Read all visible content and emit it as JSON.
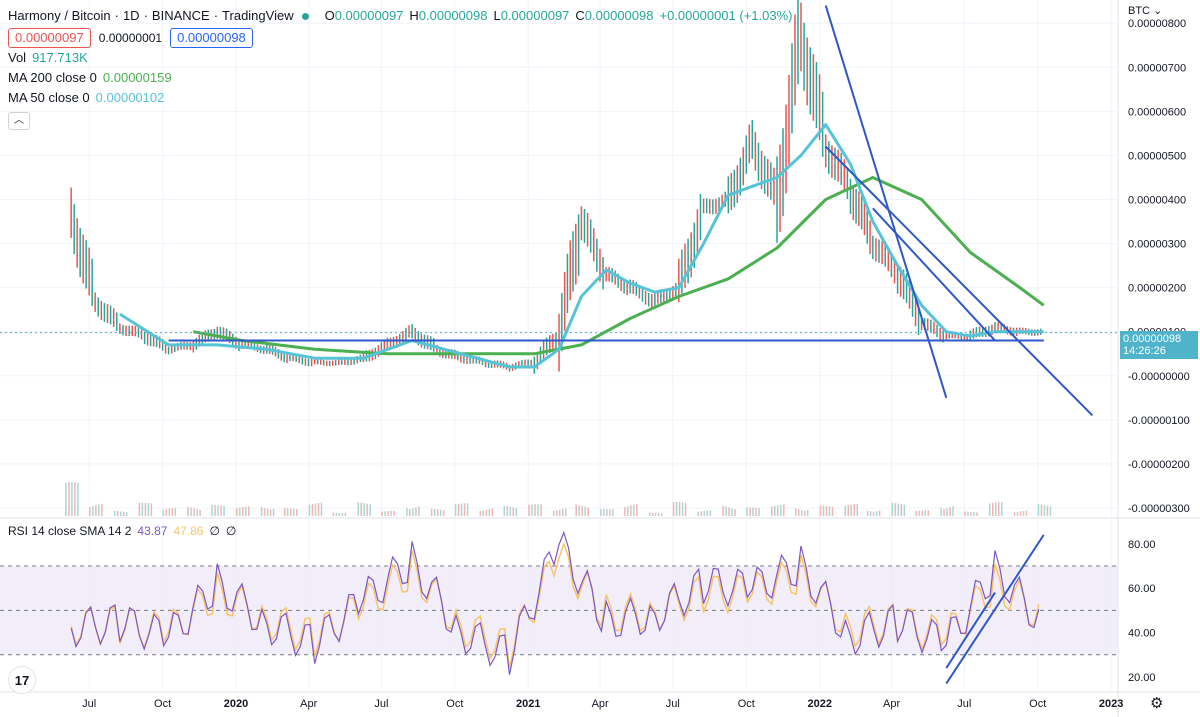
{
  "legend": {
    "symbol": "Harmony / Bitcoin",
    "interval": "1D",
    "exchange": "BINANCE",
    "source": "TradingView",
    "o_label": "O",
    "o_value": "0.00000097",
    "h_label": "H",
    "h_value": "0.00000098",
    "l_label": "L",
    "l_value": "0.00000097",
    "c_label": "C",
    "c_value": "0.00000098",
    "change": "+0.00000001 (+1.03%)",
    "sell_price": "0.00000097",
    "spread": "0.00000001",
    "buy_price": "0.00000098",
    "vol_label": "Vol",
    "vol_value": "917.713K",
    "ma200_label": "MA 200 close 0",
    "ma200_value": "0.00000159",
    "ma50_label": "MA 50 close 0",
    "ma50_value": "0.00000102"
  },
  "rsi_legend": {
    "label": "RSI 14 close SMA 14 2",
    "rsi_value": "43.87",
    "sma_value": "47.86",
    "na1": "∅",
    "na2": "∅"
  },
  "currency_label": "BTC",
  "current_price": {
    "value": "0.00000098",
    "countdown": "14:26:26"
  },
  "tv_logo": "17",
  "gear_icon": "gear-icon",
  "colors": {
    "up": "#26a69a",
    "down": "#ef5350",
    "ma50": "#56c3d6",
    "ma200": "#4caf50",
    "trendline": "#2e58c8",
    "rsi": "#7e57c2",
    "rsi_sma": "#f7c46c",
    "band": "#ede7f6"
  },
  "chart_data": [
    {
      "type": "line",
      "title": "",
      "y_axis_ticks": [
        "0.00000800",
        "0.00000700",
        "0.00000600",
        "0.00000500",
        "0.00000400",
        "0.00000300",
        "0.00000200",
        "0.00000100",
        "-0.00000000",
        "-0.00000100",
        "-0.00000200",
        "-0.00000300"
      ],
      "x_axis_ticks": [
        "Jul",
        "Oct",
        "2020",
        "Apr",
        "Jul",
        "Oct",
        "2021",
        "Apr",
        "Jul",
        "Oct",
        "2022",
        "Apr",
        "Jul",
        "Oct",
        "2023"
      ],
      "ylim": [
        -3e-06,
        8.3e-06
      ],
      "series": [
        {
          "name": "Harmony / Bitcoin",
          "x": [
            "2019-06",
            "2019-07",
            "2019-08",
            "2019-09",
            "2019-10",
            "2019-11",
            "2019-12",
            "2020-01",
            "2020-02",
            "2020-03",
            "2020-04",
            "2020-05",
            "2020-06",
            "2020-07",
            "2020-08",
            "2020-09",
            "2020-10",
            "2020-11",
            "2020-12",
            "2021-01",
            "2021-02",
            "2021-03",
            "2021-04",
            "2021-05",
            "2021-06",
            "2021-07",
            "2021-08",
            "2021-09",
            "2021-10",
            "2021-11",
            "2021-12",
            "2022-01",
            "2022-02",
            "2022-03",
            "2022-04",
            "2022-05",
            "2022-06",
            "2022-07",
            "2022-08",
            "2022-09",
            "2022-10"
          ],
          "values": [
            3.7e-06,
            1.7e-06,
            1.1e-06,
            9e-07,
            6e-07,
            7e-07,
            1e-06,
            7e-07,
            6e-07,
            4e-07,
            3e-07,
            3e-07,
            4e-07,
            7e-07,
            1e-06,
            6e-07,
            4e-07,
            3e-07,
            2e-07,
            3e-07,
            9e-07,
            3.5e-06,
            2.3e-06,
            2e-06,
            1.7e-06,
            2e-06,
            3.8e-06,
            4e-06,
            5.3e-06,
            4e-06,
            7.8e-06,
            5.2e-06,
            4.2e-06,
            3e-06,
            2.3e-06,
            1.2e-06,
            9e-07,
            9e-07,
            1.1e-06,
            1e-06,
            1e-06
          ]
        },
        {
          "name": "MA 50",
          "x": [
            "2019-08",
            "2019-10",
            "2019-12",
            "2020-02",
            "2020-04",
            "2020-06",
            "2020-08",
            "2020-10",
            "2020-12",
            "2021-01",
            "2021-02",
            "2021-03",
            "2021-04",
            "2021-05",
            "2021-06",
            "2021-07",
            "2021-08",
            "2021-09",
            "2021-10",
            "2021-11",
            "2021-12",
            "2022-01",
            "2022-02",
            "2022-03",
            "2022-04",
            "2022-05",
            "2022-06",
            "2022-07",
            "2022-08",
            "2022-09",
            "2022-10"
          ],
          "values": [
            1.4e-06,
            7e-07,
            7e-07,
            6e-07,
            4e-07,
            4e-07,
            8e-07,
            5e-07,
            2e-07,
            2e-07,
            6e-07,
            1.8e-06,
            2.4e-06,
            2.1e-06,
            1.9e-06,
            2e-06,
            3e-06,
            4.1e-06,
            4.3e-06,
            4.5e-06,
            5e-06,
            5.7e-06,
            4.8e-06,
            3.5e-06,
            2.5e-06,
            1.6e-06,
            1e-06,
            9e-07,
            1e-06,
            1e-06,
            1e-06
          ]
        },
        {
          "name": "MA 200",
          "x": [
            "2019-11",
            "2020-01",
            "2020-04",
            "2020-07",
            "2020-10",
            "2021-01",
            "2021-03",
            "2021-05",
            "2021-07",
            "2021-09",
            "2021-11",
            "2022-01",
            "2022-03",
            "2022-05",
            "2022-07",
            "2022-09",
            "2022-10"
          ],
          "values": [
            1e-06,
            8e-07,
            6e-07,
            5e-07,
            5e-07,
            5e-07,
            7e-07,
            1.3e-06,
            1.8e-06,
            2.2e-06,
            2.9e-06,
            4e-06,
            4.5e-06,
            4e-06,
            2.8e-06,
            2e-06,
            1.6e-06
          ]
        }
      ],
      "trendlines": [
        {
          "from": [
            "2022-01",
            8.4e-06
          ],
          "to": [
            "2022-06",
            -5e-07
          ]
        },
        {
          "from": [
            "2022-01",
            5.2e-06
          ],
          "to": [
            "2022-12",
            -9e-07
          ]
        },
        {
          "from": [
            "2022-03",
            3.8e-06
          ],
          "to": [
            "2022-08",
            8e-07
          ]
        },
        {
          "from": [
            "2019-10",
            8e-07
          ],
          "to": [
            "2022-10",
            8e-07
          ]
        }
      ]
    },
    {
      "type": "line",
      "title": "",
      "y_axis_ticks": [
        "80.00",
        "60.00",
        "40.00",
        "20.00"
      ],
      "bands": {
        "upper": 70,
        "middle": 50,
        "lower": 30
      },
      "ylim": [
        15,
        88
      ],
      "series": [
        {
          "name": "RSI 14",
          "x": [
            "2019-06",
            "2019-08",
            "2019-10",
            "2019-12",
            "2020-02",
            "2020-04",
            "2020-06",
            "2020-08",
            "2020-10",
            "2020-12",
            "2021-02",
            "2021-04",
            "2021-06",
            "2021-08",
            "2021-10",
            "2021-12",
            "2022-02",
            "2022-04",
            "2022-06",
            "2022-08",
            "2022-10"
          ],
          "values": [
            42,
            45,
            38,
            62,
            44,
            35,
            55,
            72,
            40,
            30,
            80,
            45,
            48,
            62,
            60,
            70,
            38,
            45,
            35,
            68,
            44
          ]
        },
        {
          "name": "SMA 14",
          "x": [
            "2019-06",
            "2019-08",
            "2019-10",
            "2019-12",
            "2020-02",
            "2020-04",
            "2020-06",
            "2020-08",
            "2020-10",
            "2020-12",
            "2021-02",
            "2021-04",
            "2021-06",
            "2021-08",
            "2021-10",
            "2021-12",
            "2022-02",
            "2022-04",
            "2022-06",
            "2022-08",
            "2022-10"
          ],
          "values": [
            43,
            44,
            40,
            58,
            46,
            38,
            52,
            68,
            43,
            33,
            74,
            48,
            49,
            58,
            58,
            66,
            42,
            45,
            38,
            62,
            47
          ]
        }
      ],
      "trendlines": [
        {
          "from": [
            "2022-06",
            17
          ],
          "to": [
            "2022-10",
            84
          ]
        },
        {
          "from": [
            "2022-06",
            24
          ],
          "to": [
            "2022-08",
            58
          ]
        }
      ]
    }
  ]
}
